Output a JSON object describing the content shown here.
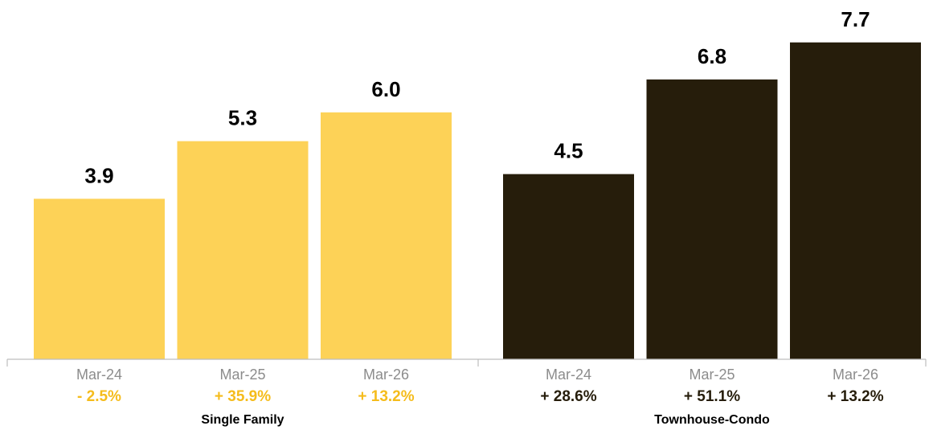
{
  "chart_data": {
    "type": "bar",
    "colors": {
      "single_family": "#fdd257",
      "townhouse_condo": "#261d0b",
      "change_single_family": "#f5bc1c",
      "change_townhouse_condo": "#261d0b"
    },
    "ylim": [
      0,
      8.5
    ],
    "groups": [
      {
        "name": "Single Family",
        "color_key": "single_family",
        "bars": [
          {
            "category": "Mar-24",
            "value": 3.9,
            "label": "3.9",
            "change": "- 2.5%"
          },
          {
            "category": "Mar-25",
            "value": 5.3,
            "label": "5.3",
            "change": "+ 35.9%"
          },
          {
            "category": "Mar-26",
            "value": 6.0,
            "label": "6.0",
            "change": "+ 13.2%"
          }
        ]
      },
      {
        "name": "Townhouse-Condo",
        "color_key": "townhouse_condo",
        "bars": [
          {
            "category": "Mar-24",
            "value": 4.5,
            "label": "4.5",
            "change": "+ 28.6%"
          },
          {
            "category": "Mar-25",
            "value": 6.8,
            "label": "6.8",
            "change": "+ 51.1%"
          },
          {
            "category": "Mar-26",
            "value": 7.7,
            "label": "7.7",
            "change": "+ 13.2%"
          }
        ]
      }
    ]
  }
}
